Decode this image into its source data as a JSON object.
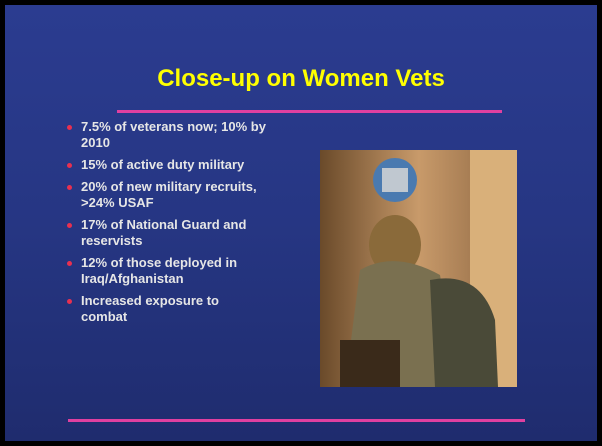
{
  "title": "Close-up on Women Vets",
  "bullets": [
    "7.5% of veterans now; 10% by 2010",
    "15% of active duty military",
    "20% of new military recruits, >24% USAF",
    "17% of National Guard and reservists",
    "12% of those deployed in Iraq/Afghanistan",
    "Increased exposure to combat"
  ]
}
